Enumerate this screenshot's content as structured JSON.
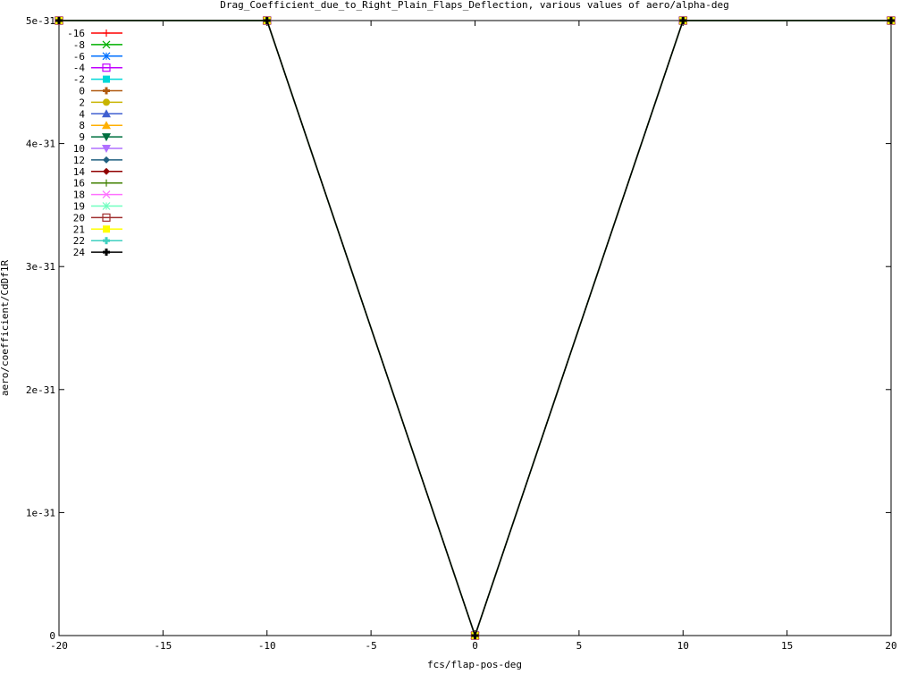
{
  "chart_data": {
    "type": "line",
    "title": "Drag_Coefficient_due_to_Right_Plain_Flaps_Deflection, various values of aero/alpha-deg",
    "xlabel": "fcs/flap-pos-deg",
    "ylabel": "aero/coefficient/CdDf1R",
    "xlim": [
      -20,
      20
    ],
    "ylim": [
      0,
      5e-31
    ],
    "x_ticks": [
      -20,
      -15,
      -10,
      -5,
      0,
      5,
      10,
      15,
      20
    ],
    "x_tick_labels": [
      "-20",
      "-15",
      "-10",
      "-5",
      "0",
      "5",
      "10",
      "15",
      "20"
    ],
    "y_ticks": [
      0,
      1e-31,
      2e-31,
      3e-31,
      4e-31,
      5e-31
    ],
    "y_tick_labels": [
      "0",
      "1e-31",
      "2e-31",
      "3e-31",
      "4e-31",
      "5e-31"
    ],
    "grid": false,
    "legend_position": "top-left",
    "x": [
      -20,
      -10,
      0,
      10,
      20
    ],
    "series": [
      {
        "name": "-16",
        "color": "#ff0000",
        "marker": "plus",
        "values": [
          5e-31,
          5e-31,
          0,
          5e-31,
          5e-31
        ]
      },
      {
        "name": "-8",
        "color": "#00b000",
        "marker": "cross",
        "values": [
          5e-31,
          5e-31,
          0,
          5e-31,
          5e-31
        ]
      },
      {
        "name": "-6",
        "color": "#0070ff",
        "marker": "star",
        "values": [
          5e-31,
          5e-31,
          0,
          5e-31,
          5e-31
        ]
      },
      {
        "name": "-4",
        "color": "#c000ff",
        "marker": "box",
        "values": [
          5e-31,
          5e-31,
          0,
          5e-31,
          5e-31
        ]
      },
      {
        "name": "-2",
        "color": "#00d8d8",
        "marker": "filled-box",
        "values": [
          5e-31,
          5e-31,
          0,
          5e-31,
          5e-31
        ]
      },
      {
        "name": "0",
        "color": "#b05a10",
        "marker": "filled-cross",
        "values": [
          5e-31,
          5e-31,
          0,
          5e-31,
          5e-31
        ]
      },
      {
        "name": "2",
        "color": "#c8b400",
        "marker": "filled-circle",
        "values": [
          5e-31,
          5e-31,
          0,
          5e-31,
          5e-31
        ]
      },
      {
        "name": "4",
        "color": "#4060d0",
        "marker": "filled-triangle",
        "values": [
          5e-31,
          5e-31,
          0,
          5e-31,
          5e-31
        ]
      },
      {
        "name": "8",
        "color": "#ffb000",
        "marker": "filled-triangle",
        "values": [
          5e-31,
          5e-31,
          0,
          5e-31,
          5e-31
        ]
      },
      {
        "name": "9",
        "color": "#007040",
        "marker": "filled-triangle-down",
        "values": [
          5e-31,
          5e-31,
          0,
          5e-31,
          5e-31
        ]
      },
      {
        "name": "10",
        "color": "#b070ff",
        "marker": "filled-triangle-down",
        "values": [
          5e-31,
          5e-31,
          0,
          5e-31,
          5e-31
        ]
      },
      {
        "name": "12",
        "color": "#206080",
        "marker": "filled-diamond",
        "values": [
          5e-31,
          5e-31,
          0,
          5e-31,
          5e-31
        ]
      },
      {
        "name": "14",
        "color": "#900000",
        "marker": "filled-diamond",
        "values": [
          5e-31,
          5e-31,
          0,
          5e-31,
          5e-31
        ]
      },
      {
        "name": "16",
        "color": "#408000",
        "marker": "plus",
        "values": [
          5e-31,
          5e-31,
          0,
          5e-31,
          5e-31
        ]
      },
      {
        "name": "18",
        "color": "#ff70ff",
        "marker": "cross",
        "values": [
          5e-31,
          5e-31,
          0,
          5e-31,
          5e-31
        ]
      },
      {
        "name": "19",
        "color": "#70ffc0",
        "marker": "star",
        "values": [
          5e-31,
          5e-31,
          0,
          5e-31,
          5e-31
        ]
      },
      {
        "name": "20",
        "color": "#a03030",
        "marker": "box",
        "values": [
          5e-31,
          5e-31,
          0,
          5e-31,
          5e-31
        ]
      },
      {
        "name": "21",
        "color": "#ffff00",
        "marker": "filled-box",
        "values": [
          5e-31,
          5e-31,
          0,
          5e-31,
          5e-31
        ]
      },
      {
        "name": "22",
        "color": "#40d0c0",
        "marker": "filled-cross",
        "values": [
          5e-31,
          5e-31,
          0,
          5e-31,
          5e-31
        ]
      },
      {
        "name": "24",
        "color": "#000000",
        "marker": "filled-cross",
        "values": [
          5e-31,
          5e-31,
          0,
          5e-31,
          5e-31
        ]
      }
    ]
  }
}
